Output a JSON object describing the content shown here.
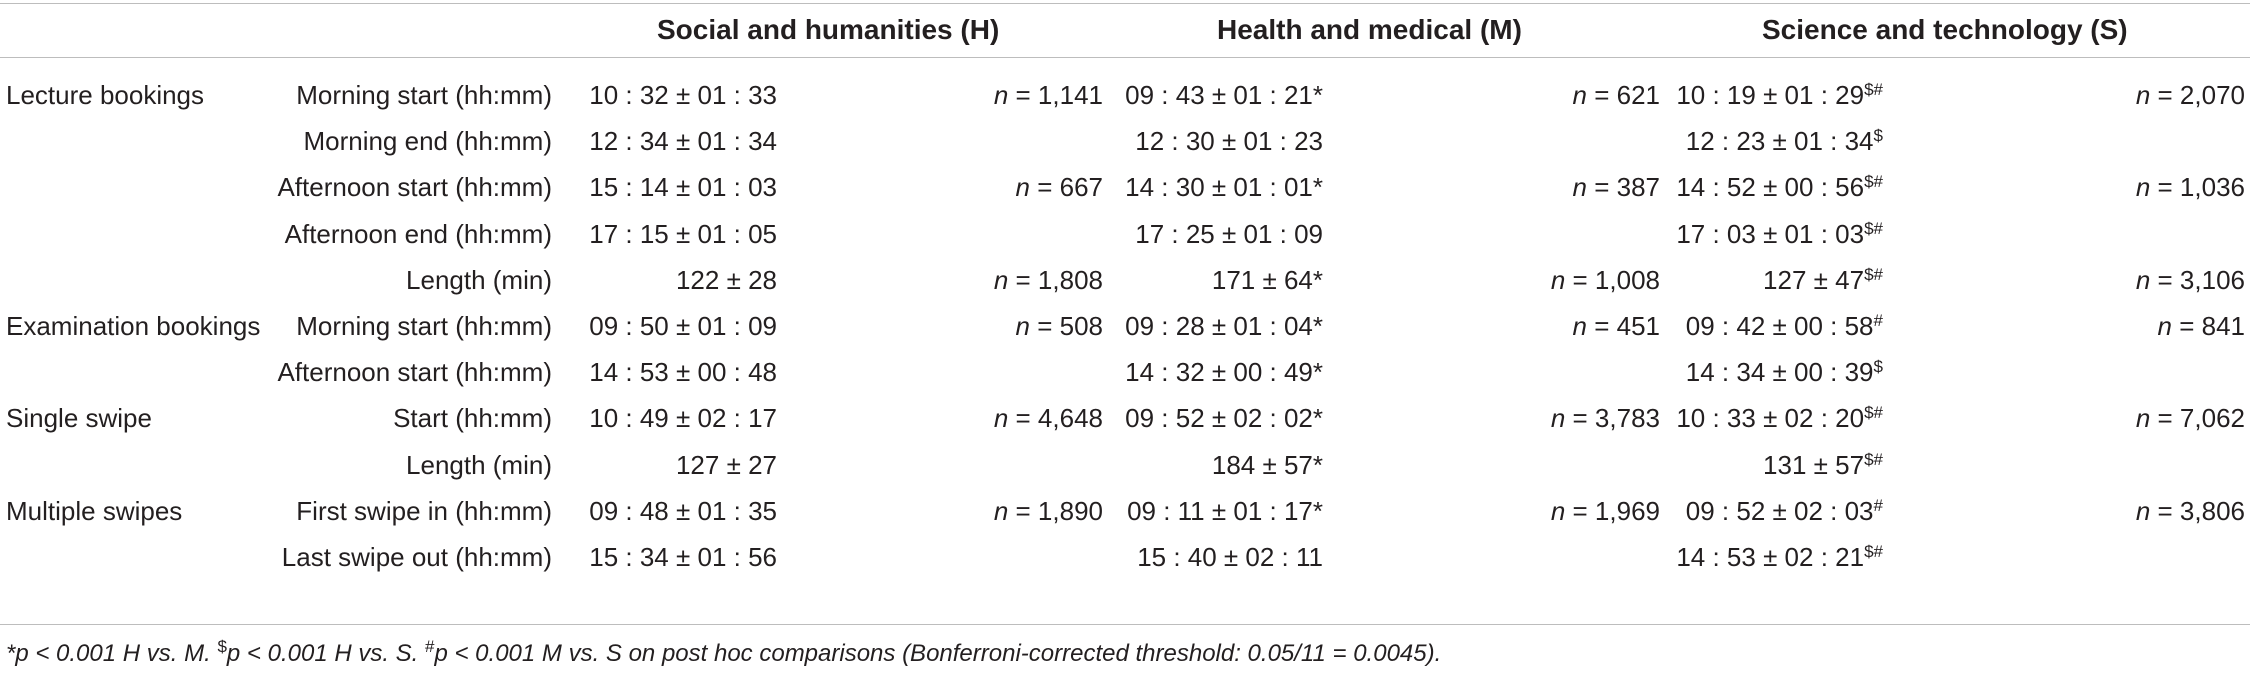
{
  "headers": [
    "Social and humanities (H)",
    "Health and medical (M)",
    "Science and technology (S)"
  ],
  "rows": [
    {
      "group": "Lecture bookings",
      "label": "Morning start (hh:mm)",
      "h": "10 : 32 ± 01 : 33",
      "h_n": "1,141",
      "m": "09 : 43 ± 01 : 21*",
      "m_n": "621",
      "s": "10 : 19 ± 01 : 29",
      "s_sup": "$#",
      "s_n": "2,070"
    },
    {
      "group": "",
      "label": "Morning end (hh:mm)",
      "h": "12 : 34 ± 01 : 34",
      "h_n": "",
      "m": "12 : 30 ± 01 : 23",
      "m_n": "",
      "s": "12 : 23 ± 01 : 34",
      "s_sup": "$",
      "s_n": ""
    },
    {
      "group": "",
      "label": "Afternoon start (hh:mm)",
      "h": "15 : 14 ± 01 : 03",
      "h_n": "667",
      "m": "14 : 30 ± 01 : 01*",
      "m_n": "387",
      "s": "14 : 52 ± 00 : 56",
      "s_sup": "$#",
      "s_n": "1,036"
    },
    {
      "group": "",
      "label": "Afternoon end (hh:mm)",
      "h": "17 : 15 ± 01 : 05",
      "h_n": "",
      "m": "17 : 25 ± 01 : 09",
      "m_n": "",
      "s": "17 : 03 ± 01 : 03",
      "s_sup": "$#",
      "s_n": ""
    },
    {
      "group": "",
      "label": "Length (min)",
      "h": "122 ± 28",
      "h_n": "1,808",
      "m": "171 ± 64*",
      "m_n": "1,008",
      "s": "127 ± 47",
      "s_sup": "$#",
      "s_n": "3,106"
    },
    {
      "group": "Examination bookings",
      "label": "Morning start (hh:mm)",
      "h": "09 : 50 ± 01 : 09",
      "h_n": "508",
      "m": "09 : 28 ± 01 : 04*",
      "m_n": "451",
      "s": "09 : 42 ± 00 : 58",
      "s_sup": "#",
      "s_n": "841"
    },
    {
      "group": "",
      "label": "Afternoon start (hh:mm)",
      "h": "14 : 53 ± 00 : 48",
      "h_n": "",
      "m": "14 : 32 ± 00 : 49*",
      "m_n": "",
      "s": "14 : 34 ± 00 : 39",
      "s_sup": "$",
      "s_n": ""
    },
    {
      "group": "Single swipe",
      "label": "Start (hh:mm)",
      "h": "10 : 49 ± 02 : 17",
      "h_n": "4,648",
      "m": "09 : 52 ± 02 : 02*",
      "m_n": "3,783",
      "s": "10 : 33 ± 02 : 20",
      "s_sup": "$#",
      "s_n": "7,062"
    },
    {
      "group": "",
      "label": "Length (min)",
      "h": "127 ± 27",
      "h_n": "",
      "m": "184 ± 57*",
      "m_n": "",
      "s": "131 ± 57",
      "s_sup": "$#",
      "s_n": ""
    },
    {
      "group": "Multiple swipes",
      "label": "First swipe in (hh:mm)",
      "h": "09 : 48 ± 01 : 35",
      "h_n": "1,890",
      "m": "09 : 11 ± 01 : 17*",
      "m_n": "1,969",
      "s": "09 : 52 ± 02 : 03",
      "s_sup": "#",
      "s_n": "3,806"
    },
    {
      "group": "",
      "label": "Last swipe out (hh:mm)",
      "h": "15 : 34 ± 01 : 56",
      "h_n": "",
      "m": "15 : 40 ± 02 : 11",
      "m_n": "",
      "s": "14 : 53 ± 02 : 21",
      "s_sup": "$#",
      "s_n": ""
    }
  ],
  "n_prefix": "n = ",
  "footnote": {
    "p1": "*p < 0.001 H vs. M. ",
    "sup1": "$",
    "p2": "p < 0.001 H vs. S. ",
    "sup2": "#",
    "p3": "p < 0.001 M vs. S on post hoc comparisons (Bonferroni-corrected threshold: 0.05/11 = 0.0045)."
  }
}
